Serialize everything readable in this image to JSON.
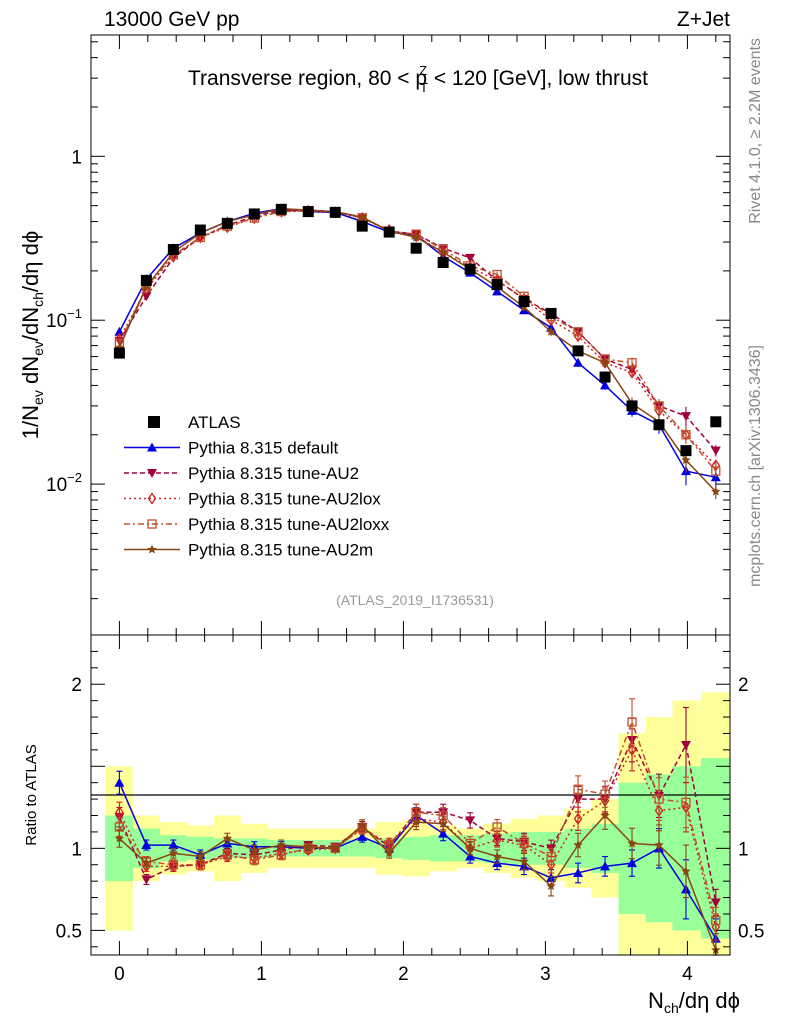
{
  "header": {
    "left": "13000 GeV pp",
    "right": "Z+Jet"
  },
  "side_labels": {
    "rivet": "Rivet 4.1.0, ≥ 2.2M events",
    "mcplots": "mcplots.cern.ch [arXiv:1306.3436]"
  },
  "chart_data": {
    "type": "line",
    "title": "Transverse region, 80 < p_T^Z < 120 [GeV], low thrust",
    "title_parts": {
      "a": "Transverse region, 80 < p",
      "sub": "T",
      "sup": "Z",
      "b": " < 120 [GeV], low thrust"
    },
    "analysis_id": "(ATLAS_2019_I1736531)",
    "xlabel": "N_ch/dη dϕ",
    "xlabel_parts": {
      "a": "N",
      "sub": "ch",
      "b": "/dη dϕ"
    },
    "ylabel": "1/N_ev dN_ev/dN_ch/dη dϕ",
    "ylabel_parts": {
      "a": "1/N",
      "s1": "ev",
      "b": " dN",
      "s2": "ev",
      "c": "/dN",
      "s3": "ch",
      "d": "/dη dϕ"
    },
    "ratio_ylabel": "Ratio to ATLAS",
    "xlim": [
      -0.2,
      4.3
    ],
    "ylim": [
      0.0012,
      5.5
    ],
    "yscale": "log",
    "ratio_ylim": [
      0.35,
      2.3
    ],
    "x_ticks": [
      "0",
      "1",
      "2",
      "3",
      "4"
    ],
    "y_ticks": [
      {
        "base": "1",
        "exp": ""
      },
      {
        "base": "10",
        "exp": "−1"
      },
      {
        "base": "10",
        "exp": "−2"
      }
    ],
    "ratio_ticks": [
      "0.5",
      "1",
      "2"
    ],
    "x": [
      0.0,
      0.19,
      0.38,
      0.57,
      0.76,
      0.95,
      1.14,
      1.33,
      1.52,
      1.71,
      1.9,
      2.09,
      2.28,
      2.47,
      2.66,
      2.85,
      3.04,
      3.23,
      3.42,
      3.61,
      3.8,
      3.99,
      4.2
    ],
    "data": {
      "name": "ATLAS",
      "values": [
        0.063,
        0.175,
        0.27,
        0.355,
        0.39,
        0.445,
        0.475,
        0.46,
        0.455,
        0.375,
        0.345,
        0.275,
        0.225,
        0.205,
        0.165,
        0.13,
        0.11,
        0.065,
        0.045,
        0.03,
        0.023,
        0.016,
        0.024
      ],
      "ratio_band_inner": [
        0.2,
        0.12,
        0.08,
        0.07,
        0.06,
        0.06,
        0.05,
        0.05,
        0.05,
        0.05,
        0.06,
        0.07,
        0.08,
        0.08,
        0.09,
        0.1,
        0.1,
        0.12,
        0.15,
        0.4,
        0.45,
        0.5,
        0.55
      ],
      "ratio_band_outer": [
        0.5,
        0.2,
        0.16,
        0.14,
        0.2,
        0.15,
        0.12,
        0.12,
        0.12,
        0.12,
        0.16,
        0.17,
        0.14,
        0.12,
        0.15,
        0.18,
        0.2,
        0.24,
        0.3,
        0.7,
        0.8,
        0.9,
        0.95
      ]
    },
    "series": [
      {
        "name": "Pythia 8.315 default",
        "color": "#0000e0",
        "dash": "",
        "marker": "triangle-up",
        "values": [
          0.085,
          0.178,
          0.275,
          0.34,
          0.4,
          0.45,
          0.48,
          0.46,
          0.455,
          0.4,
          0.345,
          0.33,
          0.245,
          0.195,
          0.15,
          0.115,
          0.09,
          0.055,
          0.04,
          0.028,
          0.023,
          0.012,
          0.011
        ],
        "ratio": [
          1.4,
          1.02,
          1.02,
          0.96,
          1.03,
          1.01,
          1.01,
          1.0,
          1.0,
          1.07,
          1.0,
          1.2,
          1.09,
          0.95,
          0.91,
          0.89,
          0.82,
          0.85,
          0.89,
          0.91,
          1.0,
          0.75,
          0.45
        ],
        "err": [
          0.05,
          0.03,
          0.03,
          0.03,
          0.03,
          0.03,
          0.03,
          0.02,
          0.02,
          0.03,
          0.03,
          0.04,
          0.04,
          0.04,
          0.04,
          0.05,
          0.05,
          0.06,
          0.06,
          0.08,
          0.12,
          0.18,
          0.12
        ]
      },
      {
        "name": "Pythia 8.315 tune-AU2",
        "color": "#a0003c",
        "dash": "5,3",
        "marker": "triangle-down",
        "values": [
          0.075,
          0.14,
          0.24,
          0.32,
          0.38,
          0.43,
          0.47,
          0.47,
          0.46,
          0.425,
          0.35,
          0.335,
          0.275,
          0.24,
          0.175,
          0.135,
          0.11,
          0.085,
          0.058,
          0.05,
          0.03,
          0.026,
          0.016
        ],
        "ratio": [
          1.19,
          0.81,
          0.89,
          0.9,
          0.97,
          0.96,
          0.99,
          1.02,
          1.01,
          1.13,
          1.01,
          1.22,
          1.22,
          1.17,
          1.06,
          1.04,
          1.0,
          1.3,
          1.3,
          1.66,
          1.32,
          1.63,
          0.67
        ],
        "err": [
          0.05,
          0.03,
          0.03,
          0.03,
          0.03,
          0.03,
          0.03,
          0.02,
          0.02,
          0.03,
          0.03,
          0.04,
          0.04,
          0.04,
          0.04,
          0.05,
          0.05,
          0.06,
          0.06,
          0.08,
          0.1,
          0.14,
          0.08
        ]
      },
      {
        "name": "Pythia 8.315 tune-AU2lox",
        "color": "#d02020",
        "dash": "2,3",
        "marker": "diamond",
        "values": [
          0.077,
          0.155,
          0.245,
          0.32,
          0.37,
          0.42,
          0.46,
          0.465,
          0.455,
          0.42,
          0.355,
          0.325,
          0.26,
          0.21,
          0.175,
          0.135,
          0.1,
          0.08,
          0.055,
          0.048,
          0.028,
          0.02,
          0.013
        ],
        "ratio": [
          1.22,
          0.89,
          0.89,
          0.9,
          0.95,
          0.94,
          0.97,
          0.99,
          1.0,
          1.12,
          1.03,
          1.18,
          1.16,
          1.0,
          1.05,
          1.02,
          0.9,
          1.18,
          1.29,
          1.6,
          1.23,
          1.25,
          0.52
        ],
        "err": [
          0.05,
          0.03,
          0.03,
          0.03,
          0.03,
          0.03,
          0.03,
          0.02,
          0.02,
          0.03,
          0.03,
          0.04,
          0.04,
          0.04,
          0.04,
          0.05,
          0.05,
          0.06,
          0.06,
          0.08,
          0.1,
          0.12,
          0.08
        ]
      },
      {
        "name": "Pythia 8.315 tune-AU2loxx",
        "color": "#c05028",
        "dash": "6,3,2,3",
        "marker": "square-open",
        "values": [
          0.072,
          0.16,
          0.25,
          0.32,
          0.375,
          0.42,
          0.46,
          0.465,
          0.46,
          0.42,
          0.35,
          0.335,
          0.27,
          0.215,
          0.19,
          0.14,
          0.105,
          0.085,
          0.058,
          0.055,
          0.03,
          0.02,
          0.012
        ],
        "ratio": [
          1.13,
          0.92,
          0.9,
          0.9,
          0.96,
          0.93,
          0.96,
          1.0,
          1.0,
          1.12,
          1.02,
          1.22,
          1.2,
          1.03,
          1.13,
          1.03,
          0.95,
          1.36,
          1.33,
          1.77,
          1.3,
          1.28,
          0.56
        ],
        "err": [
          0.05,
          0.03,
          0.03,
          0.03,
          0.03,
          0.03,
          0.03,
          0.02,
          0.02,
          0.03,
          0.03,
          0.04,
          0.04,
          0.04,
          0.04,
          0.05,
          0.05,
          0.06,
          0.06,
          0.08,
          0.1,
          0.12,
          0.08
        ]
      },
      {
        "name": "Pythia 8.315 tune-AU2m",
        "color": "#8b4513",
        "dash": "",
        "marker": "star",
        "values": [
          0.068,
          0.16,
          0.26,
          0.34,
          0.4,
          0.44,
          0.48,
          0.47,
          0.46,
          0.425,
          0.35,
          0.32,
          0.26,
          0.205,
          0.16,
          0.12,
          0.085,
          0.065,
          0.055,
          0.031,
          0.024,
          0.014,
          0.009
        ],
        "ratio": [
          1.06,
          0.91,
          0.97,
          0.95,
          1.06,
          0.99,
          1.02,
          1.01,
          1.0,
          1.14,
          0.97,
          1.16,
          1.15,
          1.0,
          0.95,
          0.92,
          0.77,
          1.02,
          1.2,
          1.03,
          1.02,
          0.86,
          0.38
        ],
        "err": [
          0.05,
          0.03,
          0.03,
          0.03,
          0.03,
          0.03,
          0.03,
          0.02,
          0.02,
          0.03,
          0.03,
          0.04,
          0.04,
          0.04,
          0.04,
          0.05,
          0.06,
          0.07,
          0.07,
          0.09,
          0.12,
          0.16,
          0.1
        ]
      }
    ]
  }
}
